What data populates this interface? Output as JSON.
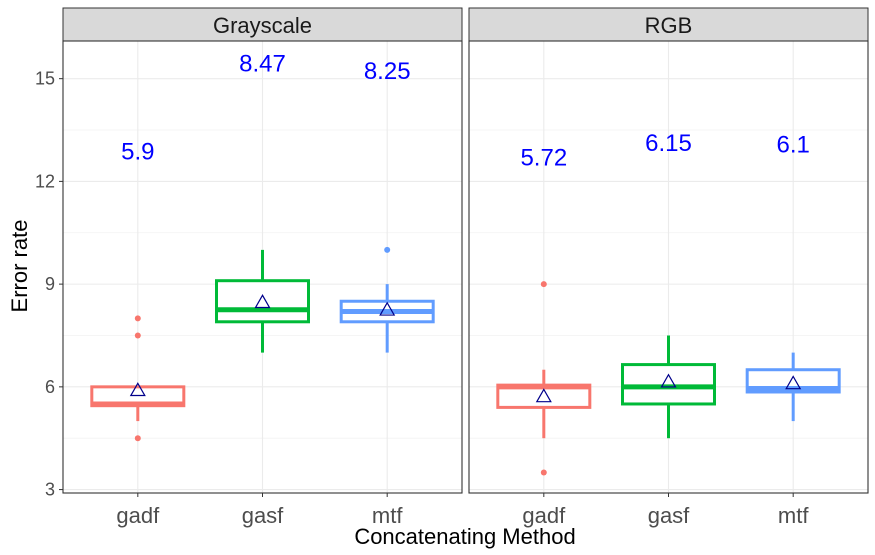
{
  "chart_data": {
    "type": "boxplot",
    "xlabel": "Concatenating Method",
    "ylabel": "Error rate",
    "ylim": [
      2.9,
      16.1
    ],
    "yticks": [
      3,
      6,
      9,
      12,
      15
    ],
    "categories": [
      "gadf",
      "gasf",
      "mtf"
    ],
    "colors": {
      "gadf": "#F8766D",
      "gasf": "#00BA38",
      "mtf": "#619CFF"
    },
    "mean_label_color": "#0000FF",
    "mean_marker_color": "#00008B",
    "grid": true,
    "panels": [
      {
        "name": "Grayscale",
        "boxes": [
          {
            "category": "gadf",
            "whisker_low": 5.0,
            "q1": 5.45,
            "median": 5.5,
            "q3": 6.0,
            "whisker_high": 6.0,
            "outliers": [
              4.5,
              7.5,
              8.0
            ],
            "mean": 5.9,
            "mean_label": "5.9"
          },
          {
            "category": "gasf",
            "whisker_low": 7.0,
            "q1": 7.9,
            "median": 8.25,
            "q3": 9.1,
            "whisker_high": 10.0,
            "outliers": [],
            "mean": 8.47,
            "mean_label": "8.47"
          },
          {
            "category": "mtf",
            "whisker_low": 7.0,
            "q1": 7.9,
            "median": 8.2,
            "q3": 8.5,
            "whisker_high": 9.0,
            "outliers": [
              10.0
            ],
            "mean": 8.25,
            "mean_label": "8.25"
          }
        ]
      },
      {
        "name": "RGB",
        "boxes": [
          {
            "category": "gadf",
            "whisker_low": 4.5,
            "q1": 5.4,
            "median": 6.0,
            "q3": 6.05,
            "whisker_high": 6.5,
            "outliers": [
              3.5,
              9.0
            ],
            "mean": 5.72,
            "mean_label": "5.72"
          },
          {
            "category": "gasf",
            "whisker_low": 4.5,
            "q1": 5.5,
            "median": 6.0,
            "q3": 6.65,
            "whisker_high": 7.5,
            "outliers": [],
            "mean": 6.15,
            "mean_label": "6.15"
          },
          {
            "category": "mtf",
            "whisker_low": 5.0,
            "q1": 5.85,
            "median": 5.95,
            "q3": 6.5,
            "whisker_high": 7.0,
            "outliers": [],
            "mean": 6.1,
            "mean_label": "6.1"
          }
        ]
      }
    ]
  }
}
